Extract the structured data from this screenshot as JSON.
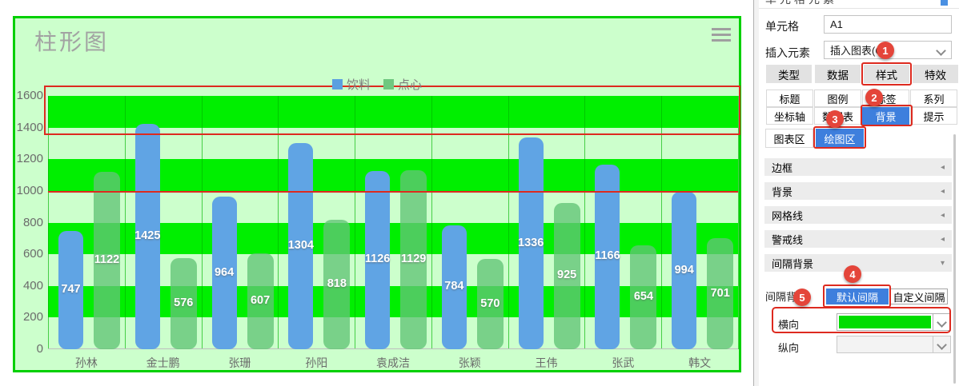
{
  "chart": {
    "title": "柱形图",
    "chart_data": {
      "type": "bar",
      "categories": [
        "孙林",
        "金士鹏",
        "张珊",
        "孙阳",
        "袁成洁",
        "张颖",
        "王伟",
        "张武",
        "韩文"
      ],
      "series": [
        {
          "name": "饮料",
          "values": [
            747,
            1425,
            964,
            1304,
            1126,
            784,
            1336,
            1166,
            994
          ]
        },
        {
          "name": "点心",
          "values": [
            1122,
            576,
            607,
            818,
            1129,
            570,
            925,
            654,
            701
          ]
        }
      ],
      "title": "柱形图",
      "xlabel": "",
      "ylabel": "",
      "ylim": [
        0,
        1600
      ],
      "ytick_step": 200,
      "legend_position": "top",
      "grid": true,
      "data_labels": true,
      "warning_line_value": 1000,
      "interval_background": {
        "orientation": "horizontal",
        "bright_color": "#00ef00",
        "light_color": "#ccffcc"
      }
    },
    "colors": {
      "series_fill": [
        "#60a4e4",
        "rgba(98,196,118,0.78)"
      ],
      "series_legend": [
        "#5ba0e0",
        "#6fc87f"
      ],
      "chart_border": "#00d000",
      "chart_background": "#ccffcc",
      "annotation_red": "#dd2a1f"
    }
  },
  "panel": {
    "header": "单元格元素",
    "cell_label": "单元格",
    "cell_value": "A1",
    "insert_label": "插入元素",
    "insert_value": "插入图表(C)",
    "tabs": [
      "类型",
      "数据",
      "样式",
      "特效"
    ],
    "active_tab": "样式",
    "subtabs_row1": [
      "标题",
      "图例",
      "标签",
      "系列"
    ],
    "subtabs_row2": [
      "坐标轴",
      "数据表",
      "背景",
      "提示"
    ],
    "active_subtab": "背景",
    "area_tabs": [
      "图表区",
      "绘图区"
    ],
    "active_area_tab": "绘图区",
    "sections": [
      {
        "label": "边框",
        "expanded": false
      },
      {
        "label": "背景",
        "expanded": false
      },
      {
        "label": "网格线",
        "expanded": false
      },
      {
        "label": "警戒线",
        "expanded": false
      },
      {
        "label": "间隔背景",
        "expanded": true
      }
    ],
    "interval": {
      "label": "间隔背景",
      "default_button": "默认间隔",
      "custom_button": "自定义间隔",
      "horizontal_label": "横向",
      "vertical_label": "纵向",
      "horizontal_color": "#00dd00"
    },
    "steps": [
      "1",
      "2",
      "3",
      "4",
      "5"
    ]
  }
}
